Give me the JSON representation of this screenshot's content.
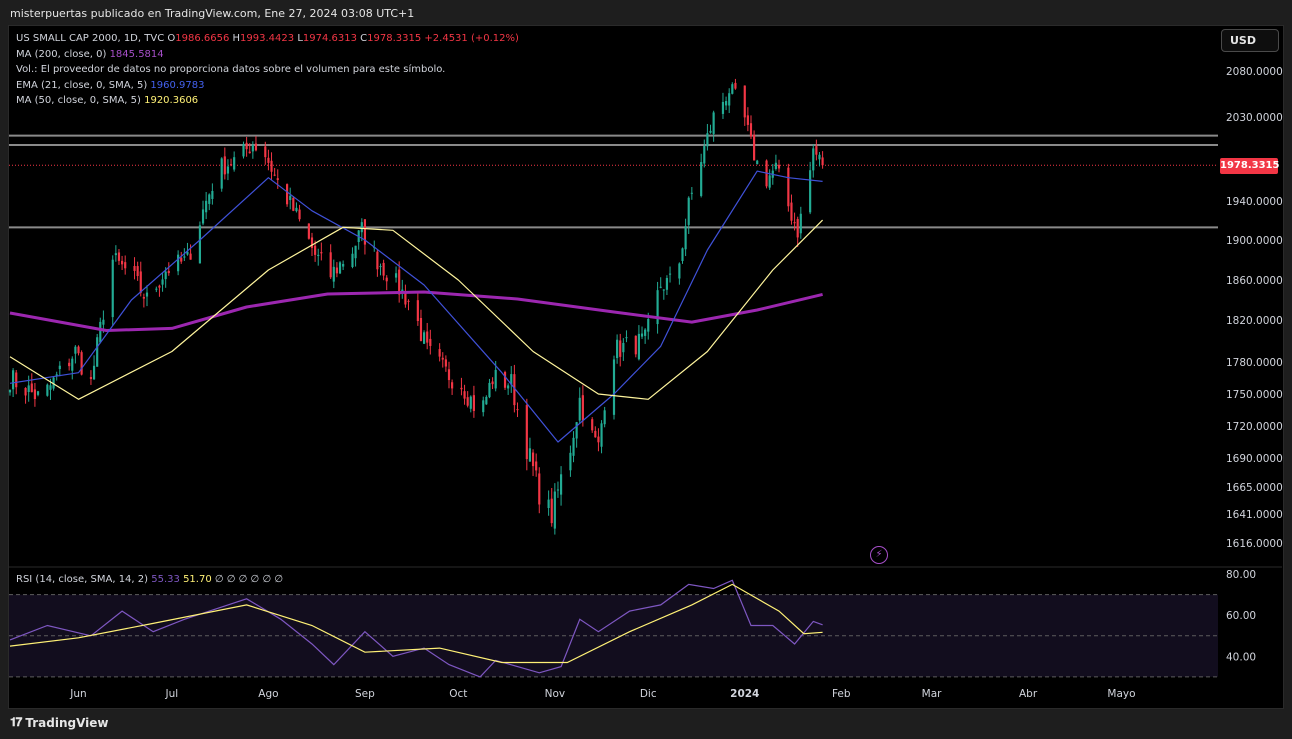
{
  "header": {
    "publisher_line": "misterpuertas publicado en TradingView.com, Ene 27, 2024 03:08 UTC+1"
  },
  "legend": {
    "symbol": "US SMALL CAP 2000, 1D, TVC",
    "o_label": "O",
    "o_value": "1986.6656",
    "h_label": "H",
    "h_value": "1993.4423",
    "l_label": "L",
    "l_value": "1974.6313",
    "c_label": "C",
    "c_value": "1978.3315",
    "change": "+2.4531 (+0.12%)",
    "ma200_label": "MA (200, close, 0)",
    "ma200_value": "1845.5814",
    "vol_text": "Vol.: El proveedor de datos no proporciona datos sobre el volumen para este símbolo.",
    "ema21_label": "EMA (21, close, 0, SMA, 5)",
    "ema21_value": "1960.9783",
    "ma50_label": "MA (50, close, 0, SMA, 5)",
    "ma50_value": "1920.3606"
  },
  "rsi_legend": {
    "label": "RSI (14, close, SMA, 14, 2)",
    "rsi_value": "55.33",
    "sma_value": "51.70",
    "extras": "∅ ∅ ∅ ∅ ∅ ∅"
  },
  "controls": {
    "currency": "USD",
    "last_price": "1978.3315"
  },
  "footer": {
    "brand": "TradingView"
  },
  "colors": {
    "up": "#22ab94",
    "down": "#f23645",
    "ema21": "#3f51d8",
    "ma50": "#fff59d",
    "ma200": "#9c27b0",
    "rsi": "#7e57c2",
    "rsi_sma": "#fff176"
  },
  "chart_data": [
    {
      "type": "candlestick",
      "title": "US SMALL CAP 2000, 1D, TVC",
      "x_ticks": [
        "Jun",
        "Jul",
        "Ago",
        "Sep",
        "Oct",
        "Nov",
        "Dic",
        "2024",
        "Feb",
        "Mar",
        "Abr",
        "Mayo"
      ],
      "y_ticks": [
        2080.0,
        2030.0,
        1940.0,
        1900.0,
        1860.0,
        1820.0,
        1780.0,
        1750.0,
        1720.0,
        1690.0,
        1665.0,
        1641.0,
        1616.0
      ],
      "y_tick_labels": [
        "2080.0000",
        "2030.0000",
        "1940.0000",
        "1900.0000",
        "1860.0000",
        "1820.0000",
        "1780.0000",
        "1750.0000",
        "1720.0000",
        "1690.0000",
        "1665.0000",
        "1641.0000",
        "1616.0000"
      ],
      "ylim": [
        1605,
        2112
      ],
      "horizontal_lines": [
        2010,
        2000,
        1913
      ],
      "last_price": 1978.3315,
      "x_range": [
        "2023-05-10",
        "2024-06-01"
      ],
      "segments": [
        [
          "2023-05-10",
          1765
        ],
        [
          "2023-05-20",
          1745
        ],
        [
          "2023-05-31",
          1790
        ],
        [
          "2023-06-05",
          1760
        ],
        [
          "2023-06-12",
          1880
        ],
        [
          "2023-06-18",
          1865
        ],
        [
          "2023-06-23",
          1840
        ],
        [
          "2023-06-29",
          1870
        ],
        [
          "2023-07-06",
          1880
        ],
        [
          "2023-07-12",
          1940
        ],
        [
          "2023-07-16",
          1975
        ],
        [
          "2023-07-22",
          1985
        ],
        [
          "2023-07-27",
          2002
        ],
        [
          "2023-07-31",
          1990
        ],
        [
          "2023-08-04",
          1960
        ],
        [
          "2023-08-10",
          1925
        ],
        [
          "2023-08-16",
          1885
        ],
        [
          "2023-08-21",
          1865
        ],
        [
          "2023-08-28",
          1890
        ],
        [
          "2023-08-31",
          1910
        ],
        [
          "2023-09-05",
          1880
        ],
        [
          "2023-09-10",
          1860
        ],
        [
          "2023-09-16",
          1835
        ],
        [
          "2023-09-21",
          1790
        ],
        [
          "2023-09-27",
          1770
        ],
        [
          "2023-10-02",
          1760
        ],
        [
          "2023-10-08",
          1730
        ],
        [
          "2023-10-12",
          1765
        ],
        [
          "2023-10-18",
          1760
        ],
        [
          "2023-10-23",
          1700
        ],
        [
          "2023-10-27",
          1660
        ],
        [
          "2023-10-31",
          1640
        ],
        [
          "2023-11-03",
          1672
        ],
        [
          "2023-11-06",
          1700
        ],
        [
          "2023-11-09",
          1745
        ],
        [
          "2023-11-12",
          1715
        ],
        [
          "2023-11-15",
          1700
        ],
        [
          "2023-11-19",
          1790
        ],
        [
          "2023-11-24",
          1795
        ],
        [
          "2023-11-30",
          1800
        ],
        [
          "2023-12-05",
          1855
        ],
        [
          "2023-12-10",
          1860
        ],
        [
          "2023-12-14",
          1935
        ],
        [
          "2023-12-18",
          1985
        ],
        [
          "2023-12-22",
          2030
        ],
        [
          "2023-12-27",
          2060
        ],
        [
          "2023-12-31",
          2040
        ],
        [
          "2024-01-03",
          2000
        ],
        [
          "2024-01-07",
          1960
        ],
        [
          "2024-01-11",
          1975
        ],
        [
          "2024-01-15",
          1935
        ],
        [
          "2024-01-18",
          1910
        ],
        [
          "2024-01-21",
          1950
        ],
        [
          "2024-01-23",
          1995
        ],
        [
          "2024-01-26",
          1978.3315
        ]
      ],
      "series": [
        {
          "name": "MA (200, close, 0)",
          "values": [
            [
              "2023-05-10",
              1827
            ],
            [
              "2023-06-10",
              1810
            ],
            [
              "2023-07-01",
              1812
            ],
            [
              "2023-07-25",
              1833
            ],
            [
              "2023-08-20",
              1846
            ],
            [
              "2023-09-20",
              1848
            ],
            [
              "2023-10-20",
              1841
            ],
            [
              "2023-11-20",
              1828
            ],
            [
              "2023-12-15",
              1818
            ],
            [
              "2024-01-05",
              1830
            ],
            [
              "2024-01-26",
              1845.5814
            ]
          ]
        },
        {
          "name": "EMA (21, close, 0, SMA, 5)",
          "values": [
            [
              "2023-05-10",
              1760
            ],
            [
              "2023-06-01",
              1770
            ],
            [
              "2023-06-18",
              1840
            ],
            [
              "2023-07-10",
              1900
            ],
            [
              "2023-08-01",
              1965
            ],
            [
              "2023-08-15",
              1930
            ],
            [
              "2023-09-01",
              1900
            ],
            [
              "2023-09-20",
              1855
            ],
            [
              "2023-10-15",
              1770
            ],
            [
              "2023-11-02",
              1705
            ],
            [
              "2023-11-20",
              1750
            ],
            [
              "2023-12-05",
              1795
            ],
            [
              "2023-12-20",
              1890
            ],
            [
              "2024-01-05",
              1972
            ],
            [
              "2024-01-15",
              1965
            ],
            [
              "2024-01-26",
              1960.9783
            ]
          ]
        },
        {
          "name": "MA (50, close, 0, SMA, 5)",
          "values": [
            [
              "2023-05-10",
              1785
            ],
            [
              "2023-06-01",
              1745
            ],
            [
              "2023-07-01",
              1790
            ],
            [
              "2023-08-01",
              1870
            ],
            [
              "2023-08-25",
              1913
            ],
            [
              "2023-09-10",
              1910
            ],
            [
              "2023-10-01",
              1860
            ],
            [
              "2023-10-25",
              1790
            ],
            [
              "2023-11-15",
              1750
            ],
            [
              "2023-12-01",
              1745
            ],
            [
              "2023-12-20",
              1790
            ],
            [
              "2024-01-10",
              1870
            ],
            [
              "2024-01-26",
              1920.3606
            ]
          ]
        }
      ]
    },
    {
      "type": "line",
      "title": "RSI (14, close, SMA, 14, 2)",
      "y_ticks": [
        80.0,
        60.0,
        40.0
      ],
      "y_tick_labels": [
        "80.00",
        "60.00",
        "40.00"
      ],
      "ylim": [
        28,
        82
      ],
      "bands": [
        70,
        50,
        30
      ],
      "series": [
        {
          "name": "RSI",
          "values": [
            [
              "2023-05-10",
              48
            ],
            [
              "2023-05-22",
              55
            ],
            [
              "2023-06-05",
              50
            ],
            [
              "2023-06-15",
              62
            ],
            [
              "2023-06-25",
              52
            ],
            [
              "2023-07-05",
              58
            ],
            [
              "2023-07-15",
              63
            ],
            [
              "2023-07-25",
              68
            ],
            [
              "2023-08-05",
              58
            ],
            [
              "2023-08-15",
              46
            ],
            [
              "2023-08-22",
              36
            ],
            [
              "2023-09-01",
              52
            ],
            [
              "2023-09-10",
              40
            ],
            [
              "2023-09-20",
              44
            ],
            [
              "2023-09-28",
              36
            ],
            [
              "2023-10-08",
              30
            ],
            [
              "2023-10-13",
              38
            ],
            [
              "2023-10-20",
              35
            ],
            [
              "2023-10-27",
              32
            ],
            [
              "2023-11-03",
              35
            ],
            [
              "2023-11-09",
              58
            ],
            [
              "2023-11-15",
              52
            ],
            [
              "2023-11-25",
              62
            ],
            [
              "2023-12-05",
              65
            ],
            [
              "2023-12-14",
              75
            ],
            [
              "2023-12-22",
              73
            ],
            [
              "2023-12-28",
              77
            ],
            [
              "2024-01-03",
              55
            ],
            [
              "2024-01-10",
              55
            ],
            [
              "2024-01-17",
              46
            ],
            [
              "2024-01-23",
              57
            ],
            [
              "2024-01-26",
              55.33
            ]
          ]
        },
        {
          "name": "RSI-based MA",
          "values": [
            [
              "2023-05-10",
              45
            ],
            [
              "2023-06-01",
              49
            ],
            [
              "2023-06-25",
              56
            ],
            [
              "2023-07-25",
              65
            ],
            [
              "2023-08-15",
              55
            ],
            [
              "2023-09-01",
              42
            ],
            [
              "2023-09-25",
              44
            ],
            [
              "2023-10-15",
              37
            ],
            [
              "2023-11-05",
              37
            ],
            [
              "2023-11-25",
              52
            ],
            [
              "2023-12-15",
              65
            ],
            [
              "2023-12-28",
              75
            ],
            [
              "2024-01-12",
              62
            ],
            [
              "2024-01-20",
              51
            ],
            [
              "2024-01-26",
              51.7
            ]
          ]
        }
      ]
    }
  ]
}
